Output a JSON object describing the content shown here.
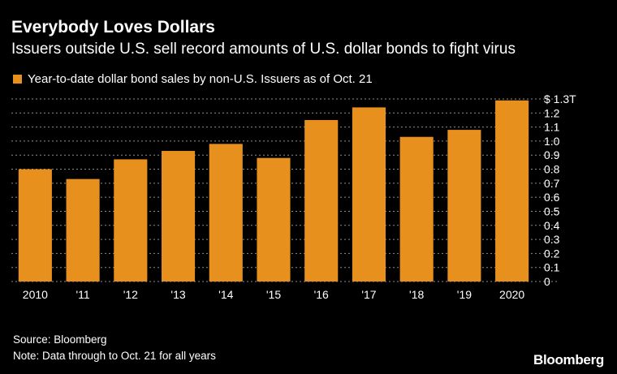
{
  "header": {
    "title": "Everybody Loves Dollars",
    "subtitle": "Issuers outside U.S. sell record amounts of U.S. dollar bonds to fight virus"
  },
  "footer": {
    "source": "Source: Bloomberg",
    "note": "Note: Data through to Oct. 21 for all years",
    "brand": "Bloomberg"
  },
  "colors": {
    "bar": "#e8901e",
    "background": "#000000",
    "grid": "#8c8c8c",
    "text": "#ffffff"
  },
  "chart_data": {
    "type": "bar",
    "title": "Everybody Loves Dollars",
    "subtitle": "Issuers outside U.S. sell record amounts of U.S. dollar bonds to fight virus",
    "categories": [
      "2010",
      "'11",
      "'12",
      "'13",
      "'14",
      "'15",
      "'16",
      "'17",
      "'18",
      "'19",
      "2020"
    ],
    "series": [
      {
        "name": "Year-to-date dollar bond sales by non-U.S. Issuers as of Oct. 21",
        "values": [
          0.8,
          0.73,
          0.87,
          0.93,
          0.98,
          0.88,
          1.15,
          1.24,
          1.03,
          1.08,
          1.29
        ]
      }
    ],
    "y_ticks": [
      {
        "value": 0,
        "label": "0"
      },
      {
        "value": 0.1,
        "label": "0.1"
      },
      {
        "value": 0.2,
        "label": "0.2"
      },
      {
        "value": 0.3,
        "label": "0.3"
      },
      {
        "value": 0.4,
        "label": "0.4"
      },
      {
        "value": 0.5,
        "label": "0.5"
      },
      {
        "value": 0.6,
        "label": "0.6"
      },
      {
        "value": 0.7,
        "label": "0.7"
      },
      {
        "value": 0.8,
        "label": "0.8"
      },
      {
        "value": 0.9,
        "label": "0.9"
      },
      {
        "value": 1.0,
        "label": "1.0"
      },
      {
        "value": 1.1,
        "label": "1.1"
      },
      {
        "value": 1.2,
        "label": "1.2"
      },
      {
        "value": 1.3,
        "label": "$ 1.3T"
      }
    ],
    "ylim": [
      0,
      1.3
    ],
    "xlabel": "",
    "ylabel": "",
    "grid": true,
    "y_axis_position": "right",
    "legend_position": "top-left"
  }
}
